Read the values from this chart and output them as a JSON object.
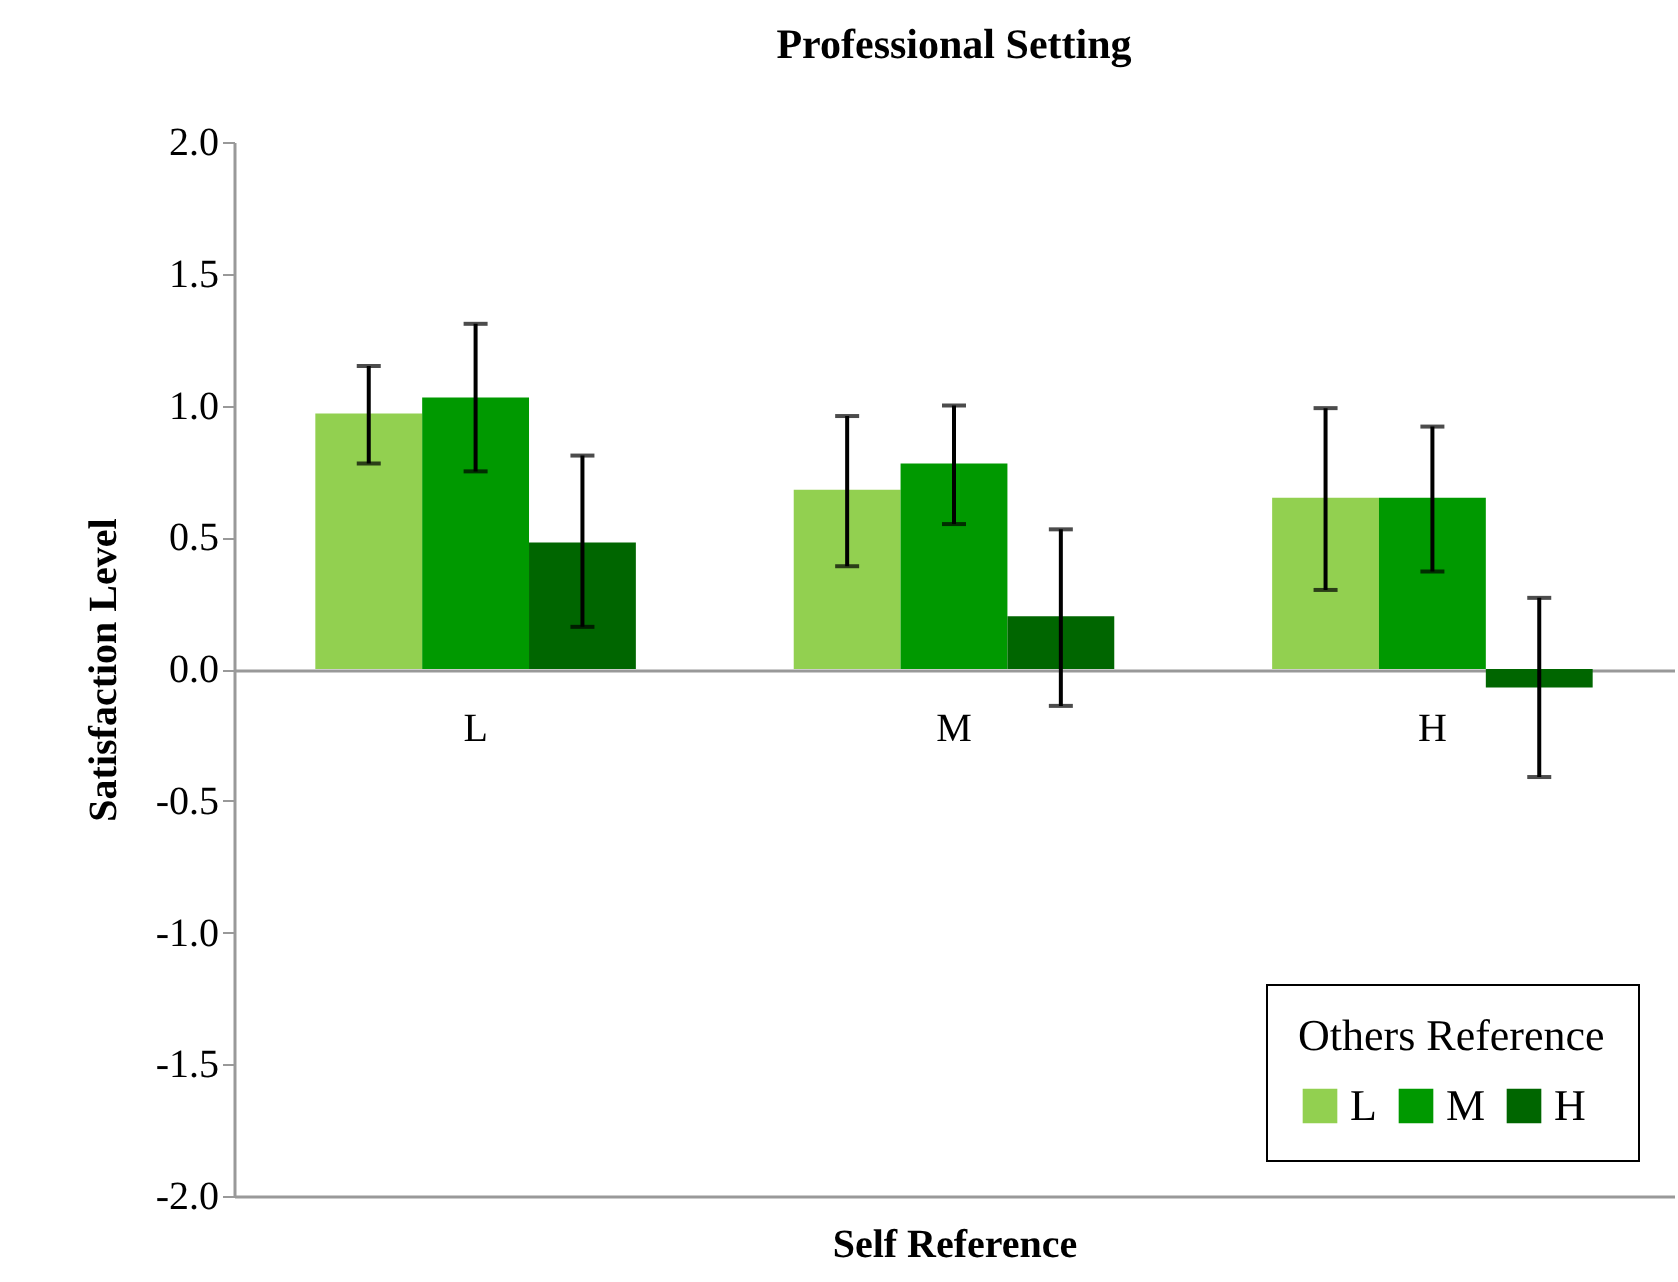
{
  "chart_data": {
    "type": "bar",
    "title": "Professional Setting",
    "xlabel": "Self Reference",
    "ylabel": "Satisfaction Level",
    "legend_title": "Others Reference",
    "categories": [
      "L",
      "M",
      "H"
    ],
    "series": [
      {
        "name": "L",
        "color": "#92d050",
        "values": [
          0.97,
          0.68,
          0.65
        ],
        "errors": [
          [
            0.78,
            1.15
          ],
          [
            0.39,
            0.96
          ],
          [
            0.3,
            0.99
          ]
        ]
      },
      {
        "name": "M",
        "color": "#009900",
        "values": [
          1.03,
          0.78,
          0.65
        ],
        "errors": [
          [
            0.75,
            1.31
          ],
          [
            0.55,
            1.0
          ],
          [
            0.37,
            0.92
          ]
        ]
      },
      {
        "name": "H",
        "color": "#006600",
        "values": [
          0.48,
          0.2,
          -0.07
        ],
        "errors": [
          [
            0.16,
            0.81
          ],
          [
            -0.14,
            0.53
          ],
          [
            -0.41,
            0.27
          ]
        ]
      }
    ],
    "ylim": [
      -2,
      2
    ],
    "yticks": [
      {
        "value": -2,
        "label": "-2.0"
      },
      {
        "value": -1.5,
        "label": "-1.5"
      },
      {
        "value": -1,
        "label": "-1.0"
      },
      {
        "value": -0.5,
        "label": "-0.5"
      },
      {
        "value": 0,
        "label": "0.0"
      },
      {
        "value": 0.5,
        "label": "0.5"
      },
      {
        "value": 1,
        "label": "1.0"
      },
      {
        "value": 1.5,
        "label": "1.5"
      },
      {
        "value": 2,
        "label": "2.0"
      }
    ],
    "legend": "bottom right",
    "grid": false
  }
}
